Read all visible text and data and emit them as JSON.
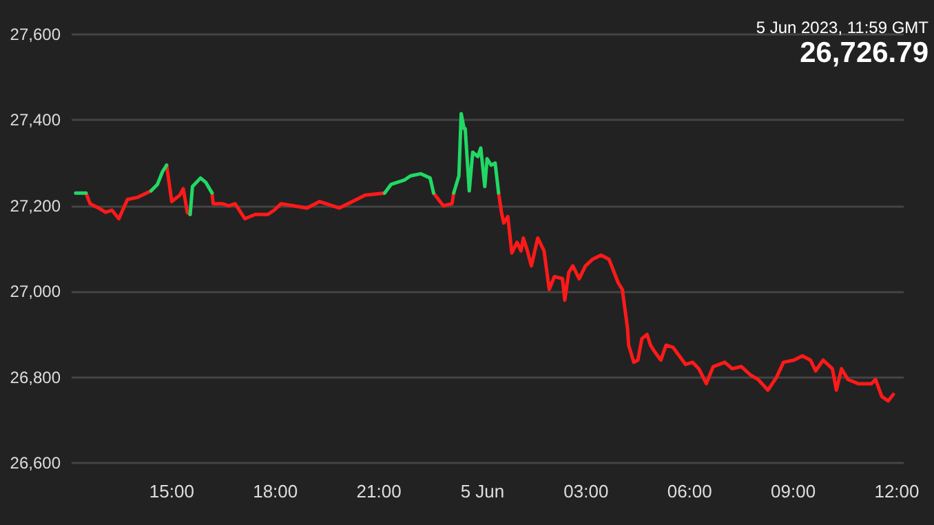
{
  "chart_data": {
    "type": "line",
    "annotations": [
      "5 Jun 2023, 11:59 GMT",
      "26,726.79"
    ],
    "x": [
      "2023-06-04T12:13",
      "2023-06-04T12:31",
      "2023-06-04T12:38",
      "2023-06-04T12:53",
      "2023-06-04T13:05",
      "2023-06-04T13:16",
      "2023-06-04T13:28",
      "2023-06-04T13:43",
      "2023-06-04T14:01",
      "2023-06-04T14:24",
      "2023-06-04T14:35",
      "2023-06-04T14:44",
      "2023-06-04T14:51",
      "2023-06-04T15:00",
      "2023-06-04T15:14",
      "2023-06-04T15:20",
      "2023-06-04T15:27",
      "2023-06-04T15:32",
      "2023-06-04T15:36",
      "2023-06-04T15:50",
      "2023-06-04T15:59",
      "2023-06-04T16:10",
      "2023-06-04T16:12",
      "2023-06-04T16:28",
      "2023-06-04T16:39",
      "2023-06-04T16:50",
      "2023-06-04T17:07",
      "2023-06-04T17:25",
      "2023-06-04T17:47",
      "2023-06-04T17:58",
      "2023-06-04T18:10",
      "2023-06-04T18:32",
      "2023-06-04T18:55",
      "2023-06-04T19:17",
      "2023-06-04T19:51",
      "2023-06-04T20:14",
      "2023-06-04T20:36",
      "2023-06-04T21:10",
      "2023-06-04T21:21",
      "2023-06-04T21:44",
      "2023-06-04T21:55",
      "2023-06-04T22:13",
      "2023-06-04T22:29",
      "2023-06-04T22:35",
      "2023-06-04T22:52",
      "2023-06-04T23:07",
      "2023-06-04T23:10",
      "2023-06-04T23:19",
      "2023-06-04T23:23",
      "2023-06-04T23:28",
      "2023-06-04T23:30",
      "2023-06-04T23:37",
      "2023-06-04T23:43",
      "2023-06-04T23:52",
      "2023-06-04T23:57",
      "2023-06-05T00:04",
      "2023-06-05T00:08",
      "2023-06-05T00:15",
      "2023-06-05T00:22",
      "2023-06-05T00:28",
      "2023-06-05T00:33",
      "2023-06-05T00:37",
      "2023-06-05T00:44",
      "2023-06-05T00:51",
      "2023-06-05T01:00",
      "2023-06-05T01:07",
      "2023-06-05T01:11",
      "2023-06-05T01:18",
      "2023-06-05T01:25",
      "2023-06-05T01:36",
      "2023-06-05T01:47",
      "2023-06-05T01:56",
      "2023-06-05T02:05",
      "2023-06-05T02:19",
      "2023-06-05T02:23",
      "2023-06-05T02:30",
      "2023-06-05T02:37",
      "2023-06-05T02:48",
      "2023-06-05T02:59",
      "2023-06-05T03:11",
      "2023-06-05T03:26",
      "2023-06-05T03:40",
      "2023-06-05T03:56",
      "2023-06-05T04:03",
      "2023-06-05T04:12",
      "2023-06-05T04:14",
      "2023-06-05T04:23",
      "2023-06-05T04:30",
      "2023-06-05T04:37",
      "2023-06-05T04:46",
      "2023-06-05T04:52",
      "2023-06-05T04:59",
      "2023-06-05T05:10",
      "2023-06-05T05:19",
      "2023-06-05T05:31",
      "2023-06-05T05:42",
      "2023-06-05T05:53",
      "2023-06-05T06:05",
      "2023-06-05T06:16",
      "2023-06-05T06:29",
      "2023-06-05T06:41",
      "2023-06-05T07:01",
      "2023-06-05T07:14",
      "2023-06-05T07:30",
      "2023-06-05T07:46",
      "2023-06-05T07:59",
      "2023-06-05T08:16",
      "2023-06-05T08:31",
      "2023-06-05T08:43",
      "2023-06-05T09:01",
      "2023-06-05T09:16",
      "2023-06-05T09:30",
      "2023-06-05T09:39",
      "2023-06-05T09:52",
      "2023-06-05T10:08",
      "2023-06-05T10:15",
      "2023-06-05T10:24",
      "2023-06-05T10:35",
      "2023-06-05T10:53",
      "2023-06-05T11:16",
      "2023-06-05T11:23",
      "2023-06-05T11:34",
      "2023-06-05T11:45",
      "2023-06-05T11:54"
    ],
    "series": [
      {
        "color": "#ff1a1a",
        "values": [
          null,
          27230,
          27205,
          27195,
          27185,
          27190,
          27170,
          27215,
          27220,
          27235,
          null,
          null,
          27295,
          27210,
          27225,
          27240,
          27185,
          27180,
          null,
          null,
          null,
          27230,
          27205,
          27205,
          27200,
          27205,
          27170,
          27180,
          27180,
          27190,
          27205,
          27200,
          27195,
          27210,
          27195,
          27210,
          27225,
          27230,
          null,
          null,
          null,
          null,
          null,
          27230,
          27200,
          27205,
          27230,
          null,
          null,
          null,
          null,
          null,
          null,
          null,
          null,
          null,
          null,
          null,
          null,
          27230,
          27185,
          27160,
          27175,
          27090,
          27115,
          27095,
          27125,
          27095,
          27060,
          27125,
          27095,
          27005,
          27035,
          27030,
          26980,
          27045,
          27060,
          27030,
          27060,
          27075,
          27085,
          27075,
          27020,
          27005,
          26915,
          26875,
          26835,
          26840,
          26890,
          26900,
          26875,
          26860,
          26840,
          26875,
          26870,
          26850,
          26830,
          26835,
          26820,
          26785,
          26825,
          26835,
          26820,
          26825,
          26805,
          26795,
          26770,
          26800,
          26835,
          26840,
          26850,
          26840,
          26815,
          26840,
          26820,
          26770,
          26820,
          26795,
          26785,
          26785,
          26795,
          26755,
          26745,
          26760
        ]
      },
      {
        "color": "#22d865",
        "values": [
          27230,
          27230,
          null,
          null,
          null,
          null,
          null,
          null,
          null,
          27235,
          27250,
          27280,
          27295,
          null,
          null,
          null,
          null,
          27180,
          27245,
          27265,
          27255,
          27230,
          null,
          null,
          null,
          null,
          null,
          null,
          null,
          null,
          null,
          null,
          null,
          null,
          null,
          null,
          null,
          27230,
          27250,
          27260,
          27270,
          27275,
          27265,
          27230,
          null,
          null,
          27230,
          27270,
          27415,
          27380,
          27380,
          27235,
          27325,
          27315,
          27335,
          27245,
          27310,
          27295,
          27300,
          27230,
          null,
          null,
          null,
          null,
          null,
          null,
          null,
          null,
          null,
          null,
          null,
          null,
          null,
          null,
          null,
          null,
          null,
          null,
          null,
          null,
          null,
          null,
          null,
          null,
          null,
          null,
          null,
          null,
          null,
          null,
          null,
          null,
          null,
          null,
          null,
          null,
          null,
          null,
          null,
          null,
          null,
          null,
          null,
          null,
          null,
          null,
          null,
          null,
          null,
          null,
          null,
          null,
          null,
          null,
          null,
          null,
          null,
          null,
          null,
          null,
          null,
          null,
          null,
          null
        ]
      }
    ],
    "xlim": [
      "2023-06-04T12:06",
      "2023-06-05T12:12"
    ],
    "xticks": [
      {
        "value": "2023-06-04T15:00",
        "label": "15:00"
      },
      {
        "value": "2023-06-04T18:00",
        "label": "18:00"
      },
      {
        "value": "2023-06-04T21:00",
        "label": "21:00"
      },
      {
        "value": "2023-06-05T00:00",
        "label": "5 Jun"
      },
      {
        "value": "2023-06-05T03:00",
        "label": "03:00"
      },
      {
        "value": "2023-06-05T06:00",
        "label": "06:00"
      },
      {
        "value": "2023-06-05T09:00",
        "label": "09:00"
      },
      {
        "value": "2023-06-05T12:00",
        "label": "12:00"
      }
    ],
    "ylim": [
      26600,
      27600
    ],
    "yticks": [
      {
        "value": 26600,
        "label": "26,600"
      },
      {
        "value": 26800,
        "label": "26,800"
      },
      {
        "value": 27000,
        "label": "27,000"
      },
      {
        "value": 27200,
        "label": "27,200"
      },
      {
        "value": 27400,
        "label": "27,400"
      },
      {
        "value": 27600,
        "label": "27,600"
      }
    ],
    "grid": "y",
    "marker": "none",
    "line_style": "solid"
  }
}
